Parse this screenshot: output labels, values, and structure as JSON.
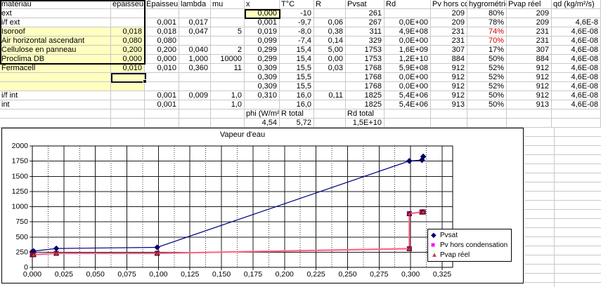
{
  "sheet": {
    "columns": [
      "matériau",
      "épaisseur",
      "Épaisseur",
      "lambda",
      "mu",
      "x",
      "T°C",
      "R",
      "Pvsat",
      "Rd",
      "Pv hors condensation",
      "hygrométrie",
      "Pvap réel",
      "qd (kg/m²/s)"
    ],
    "rows": [
      [
        "ext",
        "",
        "",
        "",
        "",
        "0,000",
        "-10",
        "",
        "261",
        "",
        "209",
        "80%",
        "209",
        ""
      ],
      [
        "i/f ext",
        "",
        "0,001",
        "0,017",
        "",
        "0,001",
        "-9,7",
        "0,06",
        "267",
        "0,0E+00",
        "209",
        "78%",
        "209",
        "4,6E-8"
      ],
      [
        "Isoroof",
        "0,018",
        "0,018",
        "0,047",
        "5",
        "0,019",
        "-8,0",
        "0,38",
        "311",
        "4,9E+08",
        "231",
        "74%",
        "231",
        "4,6E-08"
      ],
      [
        "Air horizontal ascendant",
        "0,080",
        "0,080",
        "",
        "",
        "0,099",
        "-7,4",
        "0,14",
        "329",
        "0,0E+00",
        "231",
        "70%",
        "231",
        "4,6E-08"
      ],
      [
        "Cellulose en panneau",
        "0,200",
        "0,200",
        "0,040",
        "2",
        "0,299",
        "15,4",
        "5,00",
        "1753",
        "1,6E+09",
        "307",
        "17%",
        "307",
        "4,6E-08"
      ],
      [
        "Proclima DB",
        "0,000",
        "0,000",
        "1,000",
        "10000",
        "0,299",
        "15,4",
        "0,00",
        "1753",
        "1,2E+10",
        "884",
        "50%",
        "884",
        "4,6E-08"
      ],
      [
        "Fermacell",
        "0,010",
        "0,010",
        "0,360",
        "11",
        "0,309",
        "15,5",
        "0,03",
        "1768",
        "5,9E+08",
        "912",
        "52%",
        "912",
        "4,6E-08"
      ],
      [
        "",
        "",
        "",
        "",
        "",
        "0,309",
        "15,5",
        "",
        "1768",
        "0,0E+00",
        "912",
        "52%",
        "912",
        "4,6E-08"
      ],
      [
        "",
        "",
        "",
        "",
        "",
        "0,309",
        "15,5",
        "",
        "1768",
        "0,0E+00",
        "912",
        "52%",
        "912",
        "4,6E-08"
      ],
      [
        "i/f int",
        "",
        "0,001",
        "0,009",
        "1,0",
        "0,310",
        "16,0",
        "0,11",
        "1825",
        "5,4E+06",
        "912",
        "50%",
        "912",
        "4,6E-08"
      ],
      [
        "int",
        "",
        "0,001",
        "",
        "1,0",
        "",
        "16,0",
        "",
        "1825",
        "5,4E+06",
        "913",
        "50%",
        "913",
        "4,6E-08"
      ],
      [
        "",
        "",
        "",
        "",
        "",
        "phi (W/m²",
        "R total",
        "",
        "Rd total",
        "",
        "",
        "",
        "",
        ""
      ],
      [
        "",
        "",
        "",
        "",
        "",
        "4,54",
        "5,72",
        "",
        "1,5E+10",
        "",
        "",
        "",
        "",
        ""
      ]
    ],
    "yellow_block": {
      "row_start": 2,
      "row_end": 8,
      "col_start": 0,
      "col_end": 1
    },
    "yellow_cell": {
      "row": 0,
      "col": 5
    },
    "red_cells": [
      {
        "row": 2,
        "col": 11
      },
      {
        "row": 3,
        "col": 11
      }
    ],
    "active_cell": {
      "row": 7,
      "col": 1
    }
  },
  "chart_data": {
    "type": "line",
    "title": "Vapeur d'eau",
    "x": [
      0.0,
      0.001,
      0.019,
      0.099,
      0.299,
      0.299,
      0.309,
      0.309,
      0.309,
      0.31,
      0.31
    ],
    "series": [
      {
        "name": "Pvsat",
        "color": "#000080",
        "marker": "diamond",
        "marker_fill": "#000080",
        "marker_stroke": "#000050",
        "values": [
          261,
          267,
          311,
          329,
          1753,
          1753,
          1768,
          1768,
          1768,
          1825,
          1825
        ]
      },
      {
        "name": "Pv hors condensation",
        "color": "#ff00ff",
        "marker": "square",
        "marker_fill": "#ff00ff",
        "marker_stroke": "#66004d",
        "values": [
          209,
          209,
          231,
          231,
          307,
          884,
          912,
          912,
          912,
          912,
          913
        ]
      },
      {
        "name": "Pvap réel",
        "color": "#ff6688",
        "marker": "triangle",
        "marker_fill": "#b05050",
        "marker_stroke": "#600000",
        "values": [
          209,
          209,
          231,
          231,
          307,
          884,
          912,
          912,
          912,
          912,
          913
        ]
      }
    ],
    "xlim": [
      0,
      0.3323
    ],
    "ylim": [
      0,
      2000
    ],
    "x_tick_step": 0.025,
    "x_tick_labels": [
      "0,000",
      "0,025",
      "0,050",
      "0,075",
      "0,100",
      "0,125",
      "0,150",
      "0,175",
      "0,200",
      "0,225",
      "0,250",
      "0,275",
      "0,300",
      "0,325"
    ],
    "y_tick_labels": [
      "0",
      "250",
      "500",
      "750",
      "1000",
      "1250",
      "1500",
      "1750",
      "2000"
    ],
    "grid": "major-solid, vertical-minor-dashed",
    "legend_position": "inside-right"
  },
  "colors": {
    "highlight_yellow": "#ffffc0",
    "gridline_gray": "#c9c9c9",
    "warning_red": "#cc0000",
    "axis_black": "#1a1a1a"
  }
}
